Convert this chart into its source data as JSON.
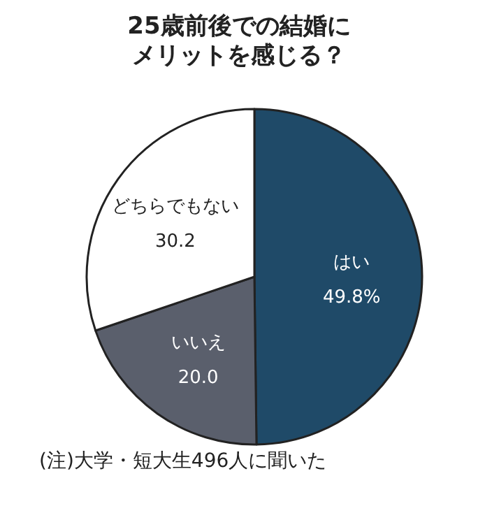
{
  "chart_data": {
    "type": "pie",
    "title": "25歳前後での結婚に",
    "subtitle": "メリットを感じる？",
    "categories": [
      "はい",
      "いいえ",
      "どちらでもない"
    ],
    "values": [
      49.8,
      20.0,
      30.2
    ],
    "colors": [
      "#1f4a68",
      "#5a5f6c",
      "#ffffff"
    ],
    "value_labels": [
      "49.8%",
      "20.0",
      "30.2"
    ],
    "annotations": [
      "(注)大学・短大生496人に聞いた"
    ]
  }
}
